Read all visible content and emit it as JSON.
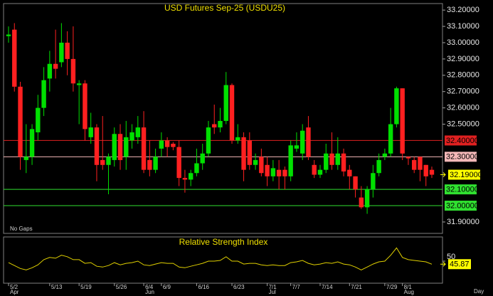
{
  "chart_data": [
    {
      "type": "candlestick",
      "title": "USD Futures Sep-25 (USDU25)",
      "note": "No Gaps",
      "x_unit": "Day",
      "categories": [
        "5/2",
        null,
        null,
        null,
        null,
        null,
        null,
        "5/13",
        null,
        null,
        null,
        null,
        "5/19",
        null,
        null,
        null,
        null,
        null,
        "5/26",
        null,
        null,
        null,
        null,
        "6/4",
        null,
        null,
        "6/9",
        null,
        null,
        null,
        null,
        null,
        "6/16",
        null,
        null,
        null,
        null,
        null,
        "6/23",
        null,
        null,
        null,
        null,
        null,
        "7/1",
        null,
        null,
        null,
        "7/7",
        null,
        null,
        null,
        null,
        "7/14",
        null,
        null,
        null,
        null,
        "7/21",
        null,
        null,
        null,
        null,
        null,
        "7/29",
        null,
        null,
        "8/1",
        null,
        null,
        null,
        null,
        null
      ],
      "months": [
        "Apr",
        null,
        null,
        null,
        null,
        null,
        null,
        null,
        null,
        null,
        null,
        null,
        null,
        null,
        null,
        null,
        null,
        null,
        null,
        null,
        null,
        null,
        null,
        "Jun",
        null,
        null,
        null,
        null,
        null,
        null,
        null,
        null,
        null,
        null,
        null,
        null,
        null,
        null,
        null,
        null,
        null,
        null,
        null,
        null,
        "Jul",
        null,
        null,
        null,
        null,
        null,
        null,
        null,
        null,
        null,
        null,
        null,
        null,
        null,
        null,
        null,
        null,
        null,
        null,
        null,
        null,
        null,
        null,
        "Aug",
        null,
        null,
        null,
        null,
        null
      ],
      "open": [
        33.04,
        33.08,
        32.73,
        32.28,
        32.3,
        32.45,
        32.6,
        32.78,
        32.87,
        32.88,
        33.0,
        32.9,
        32.74,
        32.75,
        32.42,
        32.48,
        32.28,
        32.25,
        32.28,
        32.44,
        32.3,
        32.4,
        32.42,
        32.48,
        32.28,
        32.22,
        32.35,
        32.4,
        32.38,
        32.36,
        32.17,
        32.16,
        32.2,
        32.26,
        32.32,
        32.5,
        32.48,
        32.52,
        32.74,
        32.4,
        32.42,
        32.4,
        32.25,
        32.3,
        32.25,
        32.18,
        32.22,
        32.22,
        32.18,
        32.35,
        32.32,
        32.48,
        32.25,
        32.19,
        32.22,
        32.32,
        32.25,
        32.32,
        32.22,
        32.18,
        32.05,
        31.99,
        32.1,
        32.2,
        32.3,
        32.32,
        32.5,
        32.72,
        32.3,
        32.28,
        32.3,
        32.25,
        32.22
      ],
      "high": [
        33.1,
        33.12,
        32.76,
        32.5,
        32.5,
        32.68,
        32.85,
        32.95,
        33.08,
        33.12,
        33.07,
        33.1,
        32.77,
        32.77,
        32.57,
        32.5,
        32.55,
        32.32,
        32.48,
        32.5,
        32.52,
        32.5,
        32.55,
        32.58,
        32.4,
        32.35,
        32.45,
        32.42,
        32.39,
        32.4,
        32.22,
        32.22,
        32.35,
        32.38,
        32.52,
        32.62,
        32.6,
        32.82,
        32.75,
        32.5,
        32.45,
        32.45,
        32.32,
        32.35,
        32.3,
        32.28,
        32.28,
        32.24,
        32.4,
        32.45,
        32.5,
        32.55,
        32.28,
        32.25,
        32.38,
        32.45,
        32.42,
        32.35,
        32.25,
        32.18,
        32.12,
        32.12,
        32.25,
        32.32,
        32.35,
        32.6,
        32.73,
        32.72,
        32.3,
        32.3,
        32.3,
        32.25,
        32.24
      ],
      "low": [
        33.0,
        32.7,
        32.22,
        32.2,
        32.25,
        32.4,
        32.55,
        32.7,
        32.78,
        32.85,
        32.8,
        32.7,
        32.5,
        32.4,
        32.38,
        32.15,
        32.22,
        32.07,
        32.24,
        32.22,
        32.22,
        32.35,
        32.38,
        32.2,
        32.18,
        32.2,
        32.3,
        32.3,
        32.34,
        32.12,
        32.08,
        32.12,
        32.18,
        32.22,
        32.3,
        32.44,
        32.45,
        32.5,
        32.38,
        32.38,
        32.15,
        32.22,
        32.22,
        32.18,
        32.12,
        32.15,
        32.1,
        32.1,
        32.15,
        32.33,
        32.28,
        32.28,
        32.17,
        32.17,
        32.2,
        32.22,
        32.22,
        32.18,
        32.1,
        32.05,
        31.98,
        31.95,
        32.05,
        32.18,
        32.28,
        32.3,
        32.48,
        32.28,
        32.25,
        32.2,
        32.15,
        32.12,
        32.17
      ],
      "close": [
        33.05,
        32.73,
        32.3,
        32.3,
        32.47,
        32.6,
        32.77,
        32.87,
        32.84,
        33.0,
        32.9,
        32.75,
        32.75,
        32.47,
        32.48,
        32.25,
        32.25,
        32.3,
        32.44,
        32.28,
        32.42,
        32.45,
        32.48,
        32.22,
        32.22,
        32.3,
        32.4,
        32.36,
        32.36,
        32.17,
        32.16,
        32.2,
        32.26,
        32.32,
        32.48,
        32.48,
        32.52,
        32.74,
        32.4,
        32.42,
        32.22,
        32.25,
        32.28,
        32.2,
        32.18,
        32.23,
        32.18,
        32.18,
        32.37,
        32.37,
        32.46,
        32.3,
        32.19,
        32.22,
        32.32,
        32.25,
        32.32,
        32.21,
        32.18,
        32.1,
        31.99,
        32.1,
        32.2,
        32.28,
        32.32,
        32.5,
        32.72,
        32.32,
        32.29,
        32.22,
        32.22,
        32.18,
        32.19
      ],
      "up_color": "#00e000",
      "down_color": "#ff2020",
      "ylim": [
        31.83,
        33.24
      ],
      "yticks": [
        {
          "value": 33.2,
          "label": "33.20000"
        },
        {
          "value": 33.1,
          "label": "33.10000"
        },
        {
          "value": 33.0,
          "label": "33.00000"
        },
        {
          "value": 32.9,
          "label": "32.90000"
        },
        {
          "value": 32.8,
          "label": "32.80000"
        },
        {
          "value": 32.7,
          "label": "32.70000"
        },
        {
          "value": 32.6,
          "label": "32.60000"
        },
        {
          "value": 32.5,
          "label": "32.50000"
        },
        {
          "value": 31.9,
          "label": "31.90000"
        }
      ],
      "levels": [
        {
          "value": 32.4,
          "label": "32.40000",
          "color": "#e02020"
        },
        {
          "value": 32.3,
          "label": "32.30000",
          "color": "#f4b8b8"
        },
        {
          "value": 32.1,
          "label": "32.10000",
          "color": "#30e030"
        },
        {
          "value": 32.0,
          "label": "32.00000",
          "color": "#30e030"
        }
      ],
      "last_label": "32.19000",
      "last_color": "#ffff00"
    },
    {
      "type": "line",
      "title": "Relative Strength Index",
      "color": "#e0d000",
      "values": [
        48,
        44,
        40,
        38,
        41,
        45,
        52,
        55,
        54,
        58,
        56,
        52,
        52,
        47,
        48,
        43,
        42,
        44,
        48,
        45,
        47,
        48,
        50,
        45,
        44,
        46,
        48,
        47,
        47,
        42,
        41,
        43,
        45,
        47,
        50,
        50,
        51,
        56,
        50,
        50,
        46,
        47,
        47,
        45,
        44,
        45,
        44,
        44,
        48,
        49,
        51,
        47,
        45,
        46,
        48,
        47,
        49,
        46,
        45,
        42,
        38,
        42,
        46,
        49,
        50,
        58,
        68,
        55,
        52,
        51,
        50,
        49,
        45.87
      ],
      "ylim": [
        20,
        80
      ],
      "yticks": [
        50
      ],
      "last_label": "45.87",
      "last_color": "#ffff00"
    }
  ]
}
